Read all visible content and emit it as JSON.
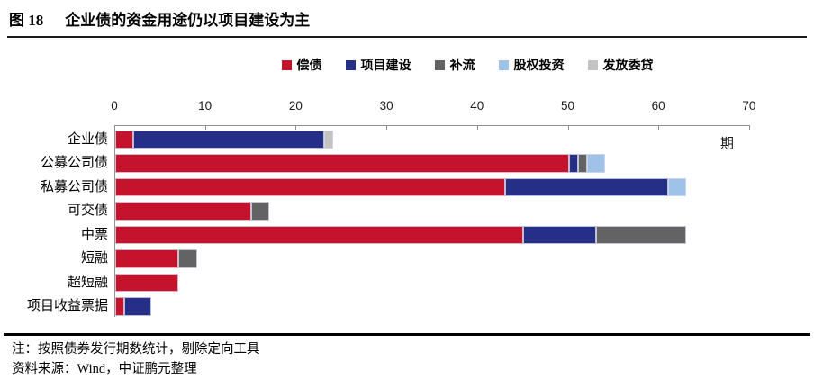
{
  "title": {
    "figure_label": "图 18",
    "text": "企业债的资金用途仍以项目建设为主"
  },
  "legend": [
    {
      "label": "偿债",
      "color": "#C5122D"
    },
    {
      "label": "项目建设",
      "color": "#252F87"
    },
    {
      "label": "补流",
      "color": "#636363"
    },
    {
      "label": "股权投资",
      "color": "#9FC3E8"
    },
    {
      "label": "发放委贷",
      "color": "#C3C3C3"
    }
  ],
  "axis": {
    "unit_label": "期",
    "ticks": [
      0,
      10,
      20,
      30,
      40,
      50,
      60,
      70
    ],
    "min": 0,
    "max": 70
  },
  "chart_data": {
    "type": "bar",
    "orientation": "horizontal",
    "stacked": true,
    "title": "图 18 企业债的资金用途仍以项目建设为主",
    "xlabel": "期",
    "ylabel": "",
    "xlim": [
      0,
      70
    ],
    "grid": false,
    "legend_position": "top",
    "categories": [
      "企业债",
      "公募公司债",
      "私募公司债",
      "可交债",
      "中票",
      "短融",
      "超短融",
      "项目收益票据"
    ],
    "series": [
      {
        "name": "偿债",
        "color": "#C5122D",
        "values": [
          2,
          50,
          43,
          15,
          45,
          7,
          7,
          1
        ]
      },
      {
        "name": "项目建设",
        "color": "#252F87",
        "values": [
          21,
          1,
          18,
          0,
          8,
          0,
          0,
          3
        ]
      },
      {
        "name": "补流",
        "color": "#636363",
        "values": [
          0,
          1,
          0,
          2,
          10,
          2,
          0,
          0
        ]
      },
      {
        "name": "股权投资",
        "color": "#9FC3E8",
        "values": [
          0,
          2,
          2,
          0,
          0,
          0,
          0,
          0
        ]
      },
      {
        "name": "发放委贷",
        "color": "#C3C3C3",
        "values": [
          1,
          0,
          0,
          0,
          0,
          0,
          0,
          0
        ]
      }
    ]
  },
  "notes": {
    "note": "注：按照债券发行期数统计，剔除定向工具",
    "source": "资料来源：Wind，中证鹏元整理"
  }
}
